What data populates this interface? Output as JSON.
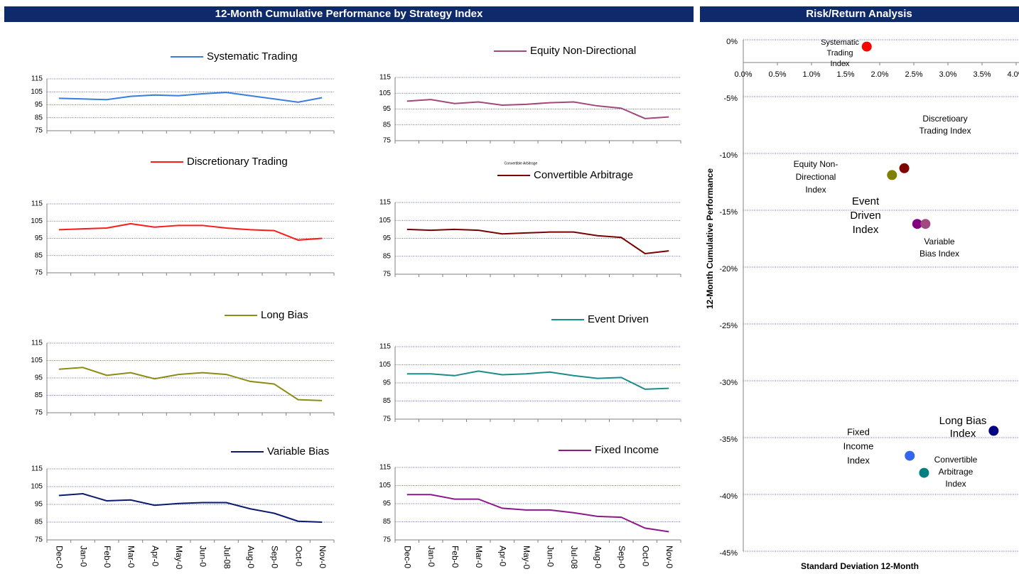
{
  "headers": {
    "left": "12-Month Cumulative Performance by Strategy Index",
    "right": "Risk/Return Analysis"
  },
  "chart_data": [
    {
      "type": "line",
      "series": [
        {
          "name": "Systematic Trading",
          "color": "#3a7de0",
          "values": [
            100,
            99.5,
            99,
            101.5,
            102.5,
            102,
            103.5,
            104.5,
            102,
            99.5,
            97,
            100.5
          ]
        }
      ],
      "ylim": [
        75,
        115
      ],
      "yticks": [
        75,
        85,
        95,
        105,
        115
      ],
      "grid": true
    },
    {
      "type": "line",
      "series": [
        {
          "name": "Equity Non-Directional",
          "color": "#a3487a",
          "values": [
            100,
            101,
            98.5,
            99.5,
            97.5,
            98,
            99,
            99.5,
            97,
            95.5,
            89,
            90
          ]
        }
      ],
      "ylim": [
        75,
        115
      ],
      "yticks": [
        75,
        85,
        95,
        105,
        115
      ],
      "grid": true
    },
    {
      "type": "line",
      "series": [
        {
          "name": "Discretionary Trading",
          "color": "#ff1a1a",
          "values": [
            100,
            100.5,
            101,
            103.5,
            101.5,
            102.5,
            102.5,
            101,
            100,
            99.5,
            94,
            95
          ]
        }
      ],
      "ylim": [
        75,
        115
      ],
      "yticks": [
        75,
        85,
        95,
        105,
        115
      ],
      "grid": true
    },
    {
      "type": "line",
      "annotation": "Convertible Arbitrage",
      "series": [
        {
          "name": "Convertible Arbitrage",
          "color": "#7a0000",
          "values": [
            100,
            99.5,
            100,
            99.5,
            97.5,
            98,
            98.5,
            98.5,
            96.5,
            95.5,
            86.5,
            88
          ]
        }
      ],
      "ylim": [
        75,
        115
      ],
      "yticks": [
        75,
        85,
        95,
        105,
        115
      ],
      "grid": true
    },
    {
      "type": "line",
      "series": [
        {
          "name": "Long Bias",
          "color": "#8c8c14",
          "values": [
            100,
            101,
            96.5,
            98,
            94.5,
            97,
            98,
            97,
            93,
            91.5,
            82.5,
            82
          ]
        }
      ],
      "ylim": [
        75,
        115
      ],
      "yticks": [
        75,
        85,
        95,
        105,
        115
      ],
      "grid": true
    },
    {
      "type": "line",
      "series": [
        {
          "name": "Event Driven",
          "color": "#1a8c8c",
          "values": [
            100,
            100,
            99,
            101.5,
            99.5,
            100,
            101,
            99,
            97.5,
            98,
            91.5,
            92
          ]
        }
      ],
      "ylim": [
        75,
        115
      ],
      "yticks": [
        75,
        85,
        95,
        105,
        115
      ],
      "grid": true
    },
    {
      "type": "line",
      "categories": [
        "Dec-0",
        "Jan-0",
        "Feb-0",
        "Mar-0",
        "Apr-0",
        "May-0",
        "Jun-0",
        "Jul-08",
        "Aug-0",
        "Sep-0",
        "Oct-0",
        "Nov-0"
      ],
      "series": [
        {
          "name": "Variable Bias",
          "color": "#0a1a6e",
          "values": [
            100,
            101,
            97,
            97.5,
            94.5,
            95.5,
            96,
            96,
            92.5,
            90,
            85.5,
            85
          ]
        }
      ],
      "ylim": [
        75,
        115
      ],
      "yticks": [
        75,
        85,
        95,
        105,
        115
      ],
      "grid": true
    },
    {
      "type": "line",
      "categories": [
        "Dec-0",
        "Jan-0",
        "Feb-0",
        "Mar-0",
        "Apr-0",
        "May-0",
        "Jun-0",
        "Jul-08",
        "Aug-0",
        "Sep-0",
        "Oct-0",
        "Nov-0"
      ],
      "series": [
        {
          "name": "Fixed Income",
          "color": "#8a1a8a",
          "values": [
            100,
            100,
            97.5,
            97.5,
            92.5,
            91.5,
            91.5,
            90,
            88,
            87.5,
            81.5,
            79.5
          ]
        }
      ],
      "ylim": [
        75,
        115
      ],
      "yticks": [
        75,
        85,
        95,
        105,
        115
      ],
      "grid": true
    },
    {
      "type": "scatter",
      "xlabel": "Standard Deviation 12-Month",
      "ylabel": "12-Month Cumulative Performance",
      "xlim": [
        0,
        4
      ],
      "ylim": [
        -45,
        0
      ],
      "grid": true,
      "xticks": [
        {
          "value": 0,
          "label": "0.0%"
        },
        {
          "value": 0.5,
          "label": "0.5%"
        },
        {
          "value": 1,
          "label": "1.0%"
        },
        {
          "value": 1.5,
          "label": "1.5%"
        },
        {
          "value": 2,
          "label": "2.0%"
        },
        {
          "value": 2.5,
          "label": "2.5%"
        },
        {
          "value": 3,
          "label": "3.0%"
        },
        {
          "value": 3.5,
          "label": "3.5%"
        },
        {
          "value": 4,
          "label": "4.0%"
        }
      ],
      "yticks": [
        {
          "value": 0,
          "label": "0%"
        },
        {
          "value": -5,
          "label": "-5%"
        },
        {
          "value": -10,
          "label": "-10%"
        },
        {
          "value": -15,
          "label": "-15%"
        },
        {
          "value": -20,
          "label": "-20%"
        },
        {
          "value": -25,
          "label": "-25%"
        },
        {
          "value": -30,
          "label": "-30%"
        },
        {
          "value": -35,
          "label": "-35%"
        },
        {
          "value": -40,
          "label": "-40%"
        },
        {
          "value": -45,
          "label": "-45%"
        }
      ],
      "points": [
        {
          "label": [
            "Systematic",
            "Trading",
            "Index"
          ],
          "color": "#ff0000",
          "x": 1.81,
          "y": -0.6
        },
        {
          "label": [
            "Discretioary",
            "Trading Index"
          ],
          "color": "#800000",
          "x": 2.36,
          "y": -11.3
        },
        {
          "label": [
            "Equity Non-",
            "Directional",
            "Index"
          ],
          "color": "#808000",
          "x": 2.18,
          "y": -11.9
        },
        {
          "label": [
            "Event",
            "Driven",
            "Index"
          ],
          "color": "#800080",
          "x": 2.55,
          "y": -16.2
        },
        {
          "label": [
            "Variable",
            "Bias Index"
          ],
          "color": "#a04a80",
          "x": 2.67,
          "y": -16.2
        },
        {
          "label": [
            "Long Bias",
            "Index"
          ],
          "color": "#000080",
          "x": 3.67,
          "y": -34.4
        },
        {
          "label": [
            "Fixed",
            "Income",
            "Index"
          ],
          "color": "#3366ee",
          "x": 2.44,
          "y": -36.6
        },
        {
          "label": [
            "Convertible",
            "Arbitrage",
            "Index"
          ],
          "color": "#008080",
          "x": 2.65,
          "y": -38.1
        }
      ]
    }
  ]
}
